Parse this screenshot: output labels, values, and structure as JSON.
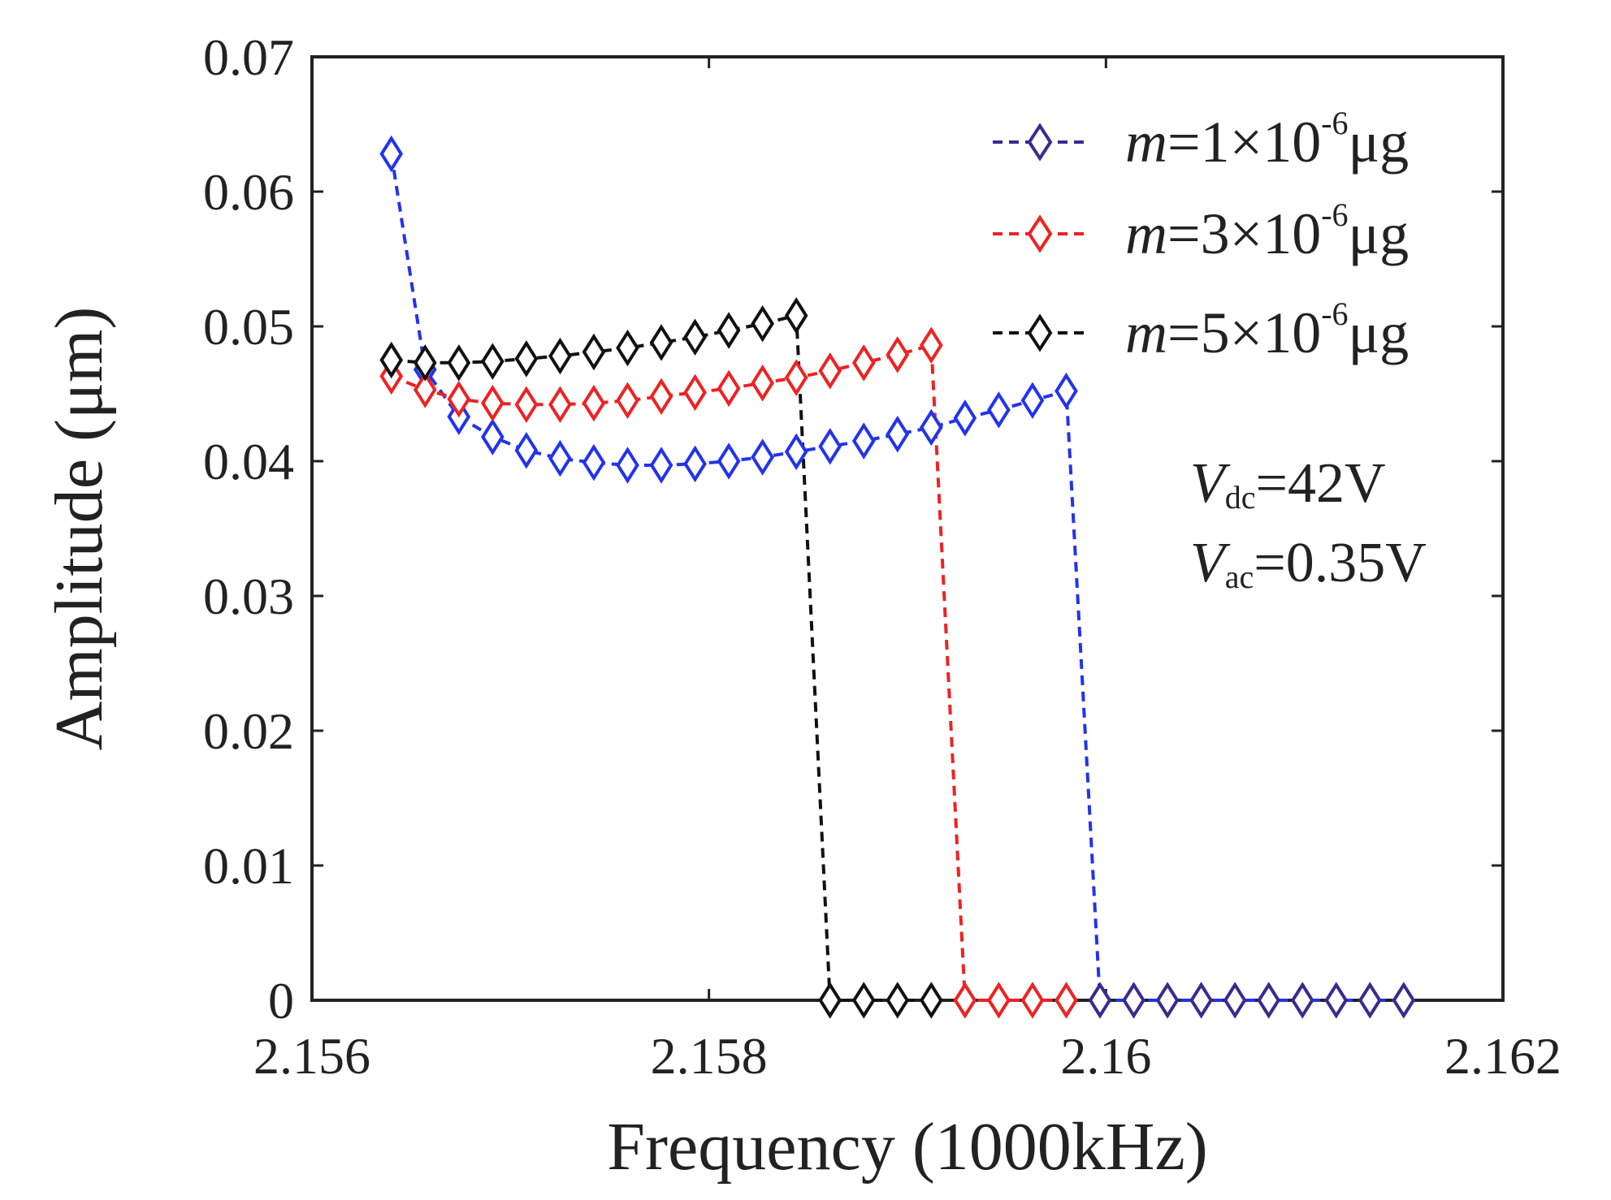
{
  "chart_data": {
    "type": "line",
    "title": "",
    "xlabel": "Frequency (1000kHz)",
    "ylabel": "Amplitude (μm)",
    "xlim": [
      2.156,
      2.162
    ],
    "ylim": [
      0,
      0.07
    ],
    "xticks": [
      {
        "value": 2.156,
        "label": "2.156"
      },
      {
        "value": 2.158,
        "label": "2.158"
      },
      {
        "value": 2.16,
        "label": "2.16"
      },
      {
        "value": 2.162,
        "label": "2.162"
      }
    ],
    "yticks": [
      {
        "value": 0,
        "label": "0"
      },
      {
        "value": 0.01,
        "label": "0.01"
      },
      {
        "value": 0.02,
        "label": "0.02"
      },
      {
        "value": 0.03,
        "label": "0.03"
      },
      {
        "value": 0.04,
        "label": "0.04"
      },
      {
        "value": 0.05,
        "label": "0.05"
      },
      {
        "value": 0.06,
        "label": "0.06"
      },
      {
        "value": 0.07,
        "label": "0.07"
      }
    ],
    "grid": false,
    "legend_position": "top-right",
    "x": [
      2.1564,
      2.15657,
      2.15674,
      2.15691,
      2.15708,
      2.15725,
      2.15742,
      2.15759,
      2.15776,
      2.15793,
      2.1581,
      2.15827,
      2.15844,
      2.15861,
      2.15878,
      2.15895,
      2.15912,
      2.15929,
      2.15946,
      2.15963,
      2.1598,
      2.15997,
      2.16014,
      2.16031,
      2.16048,
      2.16065,
      2.16082,
      2.16099,
      2.16116,
      2.16133,
      2.1615
    ],
    "series": [
      {
        "name": "m=1×10⁻⁶μg",
        "legend": {
          "var": "m",
          "eq": "=1×10",
          "exp": "-6",
          "unit": "μg"
        },
        "color": "#2233ee",
        "zero_marker_color": "#3a2a90",
        "legend_marker_color": "#3a2a90",
        "values": [
          0.0628,
          0.0468,
          0.0433,
          0.0418,
          0.0408,
          0.0402,
          0.0399,
          0.0397,
          0.0397,
          0.0398,
          0.04,
          0.0403,
          0.0407,
          0.0411,
          0.0415,
          0.042,
          0.0425,
          0.0432,
          0.0438,
          0.0445,
          0.0452,
          0,
          0,
          0,
          0,
          0,
          0,
          0,
          0,
          0,
          0
        ]
      },
      {
        "name": "m=3×10⁻⁶μg",
        "legend": {
          "var": "m",
          "eq": "=3×10",
          "exp": "-6",
          "unit": "μg"
        },
        "color": "#ee2222",
        "zero_marker_color": "#ee2222",
        "legend_marker_color": "#ee2222",
        "values": [
          0.0463,
          0.0453,
          0.0446,
          0.0443,
          0.0442,
          0.0442,
          0.0443,
          0.0445,
          0.0448,
          0.0451,
          0.0454,
          0.0458,
          0.0462,
          0.0467,
          0.0473,
          0.0479,
          0.0486,
          0,
          0,
          0,
          0,
          null,
          null,
          null,
          null,
          null,
          null,
          null,
          null,
          null,
          null
        ]
      },
      {
        "name": "m=5×10⁻⁶μg",
        "legend": {
          "var": "m",
          "eq": "=5×10",
          "exp": "-6",
          "unit": "μg"
        },
        "color": "#111111",
        "zero_marker_color": "#111111",
        "legend_marker_color": "#111111",
        "values": [
          0.0475,
          0.0473,
          0.0473,
          0.0474,
          0.0476,
          0.0478,
          0.0481,
          0.0484,
          0.0488,
          0.0492,
          0.0497,
          0.0502,
          0.0508,
          0,
          0,
          0,
          0,
          null,
          null,
          null,
          null,
          null,
          null,
          null,
          null,
          null,
          null,
          null,
          null,
          null,
          null
        ]
      }
    ],
    "annotations": [
      {
        "var": "V",
        "sub": "dc",
        "text": "=42V"
      },
      {
        "var": "V",
        "sub": "ac",
        "text": "=0.35V"
      }
    ]
  }
}
